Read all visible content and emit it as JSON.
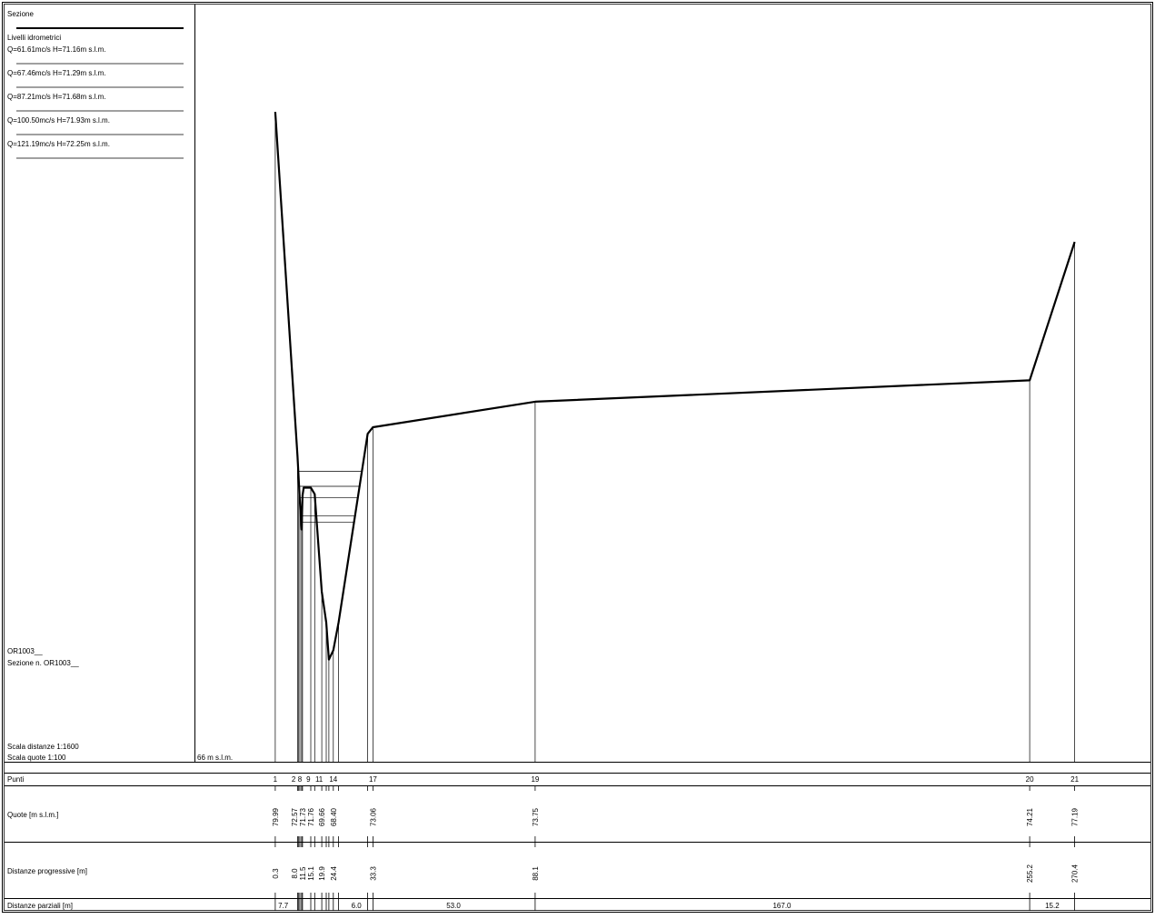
{
  "legend": {
    "title": "Sezione",
    "levels_title": "Livelli idrometrici",
    "levels": [
      {
        "label": "Q=61.61mc/s  H=71.16m s.l.m.",
        "h": 71.16
      },
      {
        "label": "Q=67.46mc/s  H=71.29m s.l.m.",
        "h": 71.29
      },
      {
        "label": "Q=87.21mc/s  H=71.68m s.l.m.",
        "h": 71.68
      },
      {
        "label": "Q=100.50mc/s  H=71.93m s.l.m.",
        "h": 71.93
      },
      {
        "label": "Q=121.19mc/s  H=72.25m s.l.m.",
        "h": 72.25
      }
    ]
  },
  "section": {
    "code": "OR1003__",
    "name": "Sezione n. OR1003__",
    "scale_distances": "Scala distanze 1:1600",
    "scale_heights": "Scala quote    1:100",
    "datum_label": "66 m s.l.m."
  },
  "table": {
    "rows": {
      "points": "Punti",
      "heights": "Quote [m s.l.m.]",
      "progressive": "Distanze progressive [m]",
      "partial": "Distanze parziali [m]"
    },
    "point_labels": [
      {
        "text": "1",
        "x": 0.3
      },
      {
        "text": "2",
        "x": 6.5
      },
      {
        "text": "8",
        "x": 8.6
      },
      {
        "text": "9",
        "x": 11.5
      },
      {
        "text": "11",
        "x": 15.1
      },
      {
        "text": "14",
        "x": 19.9
      },
      {
        "text": "17",
        "x": 33.3
      },
      {
        "text": "19",
        "x": 88.1
      },
      {
        "text": "20",
        "x": 255.2
      },
      {
        "text": "21",
        "x": 270.4
      }
    ],
    "height_labels": [
      {
        "text": "79.99",
        "x": 0.3
      },
      {
        "text": "72.57",
        "x": 6.8
      },
      {
        "text": "71.73",
        "x": 9.5
      },
      {
        "text": "71.76",
        "x": 12.3
      },
      {
        "text": "69.66",
        "x": 16.0
      },
      {
        "text": "68.40",
        "x": 19.9
      },
      {
        "text": "73.06",
        "x": 33.3
      },
      {
        "text": "73.75",
        "x": 88.1
      },
      {
        "text": "74.21",
        "x": 255.2
      },
      {
        "text": "77.19",
        "x": 270.4
      }
    ],
    "progressive_labels": [
      {
        "text": "0.3",
        "x": 0.3
      },
      {
        "text": "8.0",
        "x": 6.8
      },
      {
        "text": "11.5",
        "x": 9.5
      },
      {
        "text": "15.1",
        "x": 12.3
      },
      {
        "text": "19.9",
        "x": 16.0
      },
      {
        "text": "24.4",
        "x": 19.9
      },
      {
        "text": "33.3",
        "x": 33.3
      },
      {
        "text": "88.1",
        "x": 88.1
      },
      {
        "text": "255.2",
        "x": 255.2
      },
      {
        "text": "270.4",
        "x": 270.4
      }
    ],
    "partial_labels": [
      {
        "text": "7.7",
        "x": 3.0
      },
      {
        "text": "6.0",
        "x": 27.7
      },
      {
        "text": "53.0",
        "x": 60.5
      },
      {
        "text": "167.0",
        "x": 171.5
      },
      {
        "text": "15.2",
        "x": 262.8
      }
    ]
  },
  "chart_data": {
    "type": "line",
    "x_range": [
      -26.7,
      296.0
    ],
    "y_range": [
      66.0,
      82.3
    ],
    "profile": [
      {
        "x": 0.3,
        "y": 79.99
      },
      {
        "x": 7.8,
        "y": 72.57
      },
      {
        "x": 8.6,
        "y": 71.6
      },
      {
        "x": 9.2,
        "y": 71.0
      },
      {
        "x": 9.5,
        "y": 71.73
      },
      {
        "x": 9.9,
        "y": 71.9
      },
      {
        "x": 12.3,
        "y": 71.9
      },
      {
        "x": 13.6,
        "y": 71.76
      },
      {
        "x": 16.0,
        "y": 69.66
      },
      {
        "x": 17.5,
        "y": 69.0
      },
      {
        "x": 18.4,
        "y": 68.2
      },
      {
        "x": 19.9,
        "y": 68.4
      },
      {
        "x": 21.7,
        "y": 69.0
      },
      {
        "x": 31.5,
        "y": 73.06
      },
      {
        "x": 33.3,
        "y": 73.2
      },
      {
        "x": 88.1,
        "y": 73.75
      },
      {
        "x": 255.2,
        "y": 74.21
      },
      {
        "x": 270.4,
        "y": 77.19
      }
    ],
    "water_levels": [
      71.16,
      71.29,
      71.68,
      71.93,
      72.25
    ],
    "verticals": [
      0.3,
      7.8,
      8.2,
      8.6,
      9.2,
      9.5,
      12.3,
      13.6,
      16.0,
      17.5,
      18.4,
      19.9,
      21.7,
      31.5,
      33.3,
      88.1,
      255.2,
      270.4
    ],
    "ticks": [
      0.3,
      7.8,
      8.2,
      8.6,
      9.2,
      9.5,
      12.3,
      13.6,
      16.0,
      17.5,
      18.4,
      19.9,
      21.7,
      31.5,
      33.3,
      88.1,
      255.2,
      270.4
    ]
  }
}
